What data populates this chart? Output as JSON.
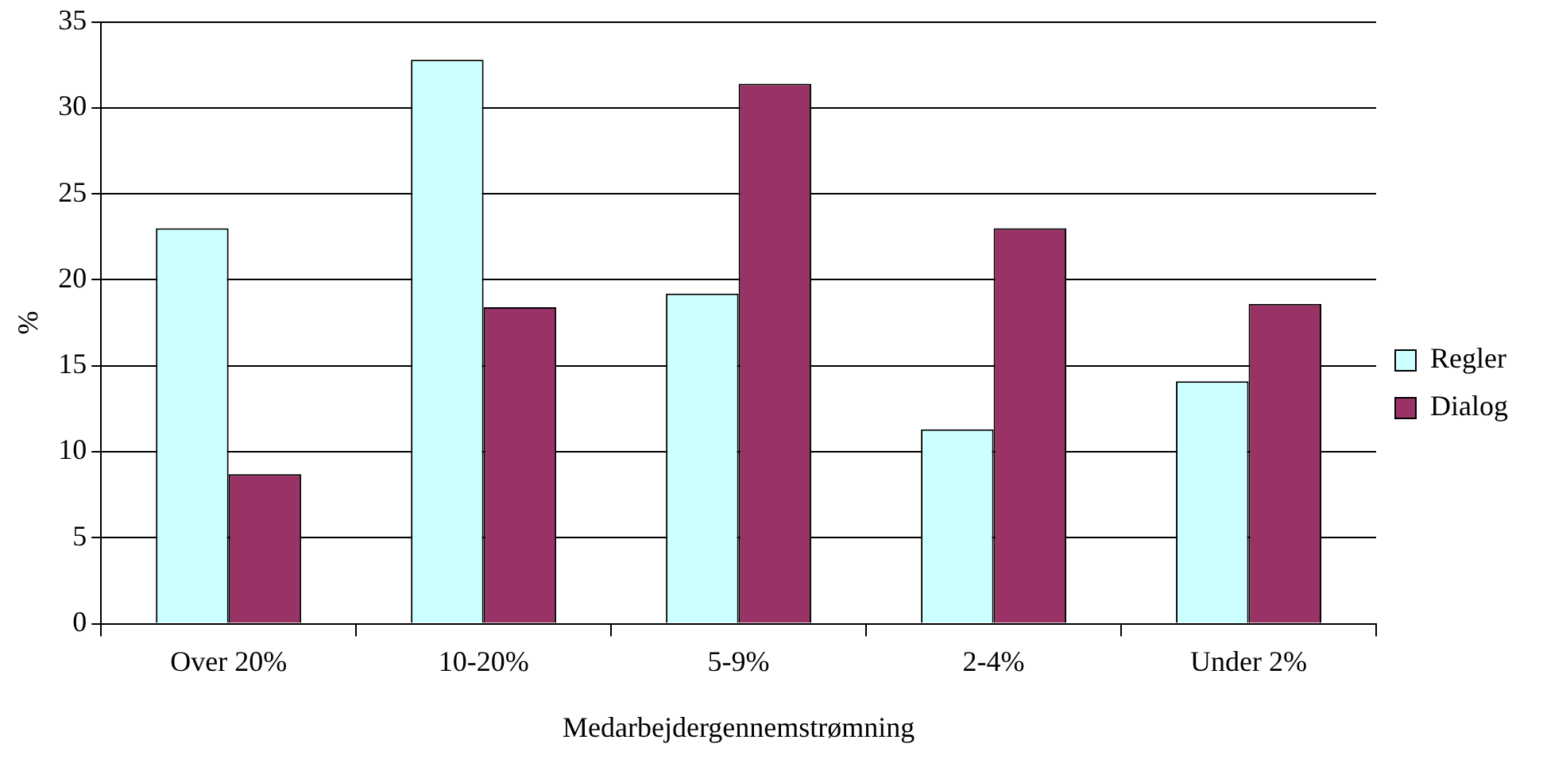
{
  "chart_data": {
    "type": "bar",
    "xlabel": "Medarbejdergennemstrømning",
    "ylabel": "%",
    "categories": [
      "Over 20%",
      "10-20%",
      "5-9%",
      "2-4%",
      "Under 2%"
    ],
    "series": [
      {
        "name": "Regler",
        "color": "#ccffff",
        "values": [
          23,
          32.8,
          19.2,
          11.3,
          14.1
        ]
      },
      {
        "name": "Dialog",
        "color": "#993366",
        "values": [
          8.7,
          18.4,
          31.4,
          23,
          18.6
        ]
      }
    ],
    "ylim": [
      0,
      35
    ],
    "yticks": [
      0,
      5,
      10,
      15,
      20,
      25,
      30,
      35
    ],
    "grid": "y",
    "legend": "right"
  }
}
